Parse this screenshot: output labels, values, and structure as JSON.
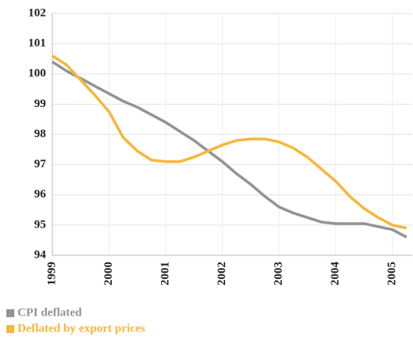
{
  "chart_data": {
    "type": "line",
    "x": [
      1999,
      1999.25,
      1999.5,
      1999.75,
      2000,
      2000.25,
      2000.5,
      2000.75,
      2001,
      2001.25,
      2001.5,
      2001.75,
      2002,
      2002.25,
      2002.5,
      2002.75,
      2003,
      2003.25,
      2003.5,
      2003.75,
      2004,
      2004.25,
      2004.5,
      2004.75,
      2005,
      2005.25
    ],
    "series": [
      {
        "name": "CPI deflated",
        "color": "#939393",
        "values": [
          100.4,
          100.1,
          99.85,
          99.6,
          99.35,
          99.1,
          98.9,
          98.65,
          98.4,
          98.1,
          97.8,
          97.45,
          97.1,
          96.7,
          96.35,
          95.95,
          95.6,
          95.4,
          95.25,
          95.1,
          95.05,
          95.05,
          95.05,
          94.95,
          94.85,
          94.6
        ]
      },
      {
        "name": "Deflated by export prices",
        "color": "#f6b73c",
        "values": [
          100.6,
          100.3,
          99.8,
          99.3,
          98.75,
          97.9,
          97.45,
          97.15,
          97.1,
          97.1,
          97.25,
          97.45,
          97.65,
          97.8,
          97.85,
          97.85,
          97.75,
          97.55,
          97.25,
          96.85,
          96.45,
          95.95,
          95.55,
          95.25,
          95.0,
          94.9
        ]
      }
    ],
    "xlim": [
      1999,
      2005.35
    ],
    "xticks": [
      1999,
      2000,
      2001,
      2002,
      2003,
      2004,
      2005
    ],
    "ylim": [
      94,
      102
    ],
    "yticks": [
      94,
      95,
      96,
      97,
      98,
      99,
      100,
      101,
      102
    ],
    "grid": true
  }
}
